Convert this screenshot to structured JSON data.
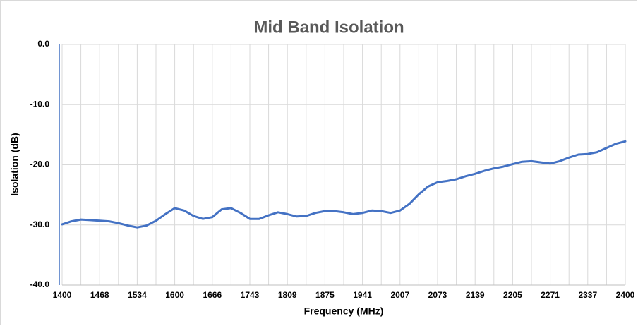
{
  "chart_data": {
    "type": "line",
    "title": "Mid Band Isolation",
    "x_label": "Frequency (MHz)",
    "y_label": "Isolation (dB)",
    "categories": [
      "1400",
      null,
      null,
      null,
      "1468",
      null,
      null,
      null,
      "1534",
      null,
      null,
      null,
      "1600",
      null,
      null,
      null,
      "1666",
      null,
      null,
      null,
      "1743",
      null,
      null,
      null,
      "1809",
      null,
      null,
      null,
      "1875",
      null,
      null,
      null,
      "1941",
      null,
      null,
      null,
      "2007",
      null,
      null,
      null,
      "2073",
      null,
      null,
      null,
      "2139",
      null,
      null,
      null,
      "2205",
      null,
      null,
      null,
      "2271",
      null,
      null,
      null,
      "2337",
      null,
      null,
      null,
      "2400"
    ],
    "series": [
      {
        "name": "Isolation",
        "color": "#4472c4",
        "values": [
          -29.9,
          -29.4,
          -29.1,
          -29.2,
          -29.3,
          -29.4,
          -29.7,
          -30.1,
          -30.4,
          -30.1,
          -29.3,
          -28.2,
          -27.2,
          -27.6,
          -28.5,
          -29.0,
          -28.7,
          -27.4,
          -27.2,
          -28.0,
          -29.0,
          -29.0,
          -28.4,
          -27.9,
          -28.2,
          -28.6,
          -28.5,
          -28.0,
          -27.7,
          -27.7,
          -27.9,
          -28.2,
          -28.0,
          -27.6,
          -27.7,
          -28.0,
          -27.6,
          -26.5,
          -24.9,
          -23.6,
          -22.9,
          -22.7,
          -22.4,
          -21.9,
          -21.5,
          -21.0,
          -20.6,
          -20.3,
          -19.9,
          -19.5,
          -19.4,
          -19.6,
          -19.8,
          -19.4,
          -18.8,
          -18.3,
          -18.2,
          -17.9,
          -17.2,
          -16.5,
          -16.1
        ]
      }
    ],
    "ylim": [
      -40,
      0
    ],
    "yticks": [
      {
        "value": -40,
        "label": "-40.0"
      },
      {
        "value": -30,
        "label": "-30.0"
      },
      {
        "value": -20,
        "label": "-20.0"
      },
      {
        "value": -10,
        "label": "-10.0"
      },
      {
        "value": 0,
        "label": "0.0"
      }
    ],
    "grid": true
  }
}
